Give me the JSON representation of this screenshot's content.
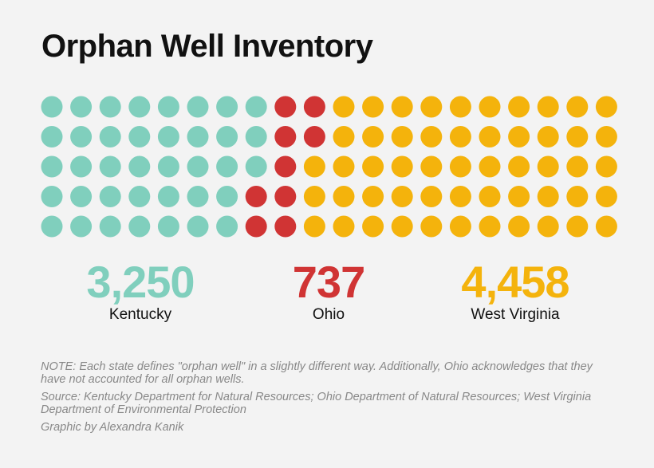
{
  "title": "Orphan Well Inventory",
  "colors": {
    "Kentucky": "#80cfbd",
    "Ohio": "#d03434",
    "West Virginia": "#f4b30c",
    "background": "#f3f3f3"
  },
  "chart_data": {
    "type": "waffle",
    "grid": {
      "rows": 5,
      "cols": 20
    },
    "series": [
      {
        "name": "Kentucky",
        "value": 3250,
        "display": "3,250"
      },
      {
        "name": "Ohio",
        "value": 737,
        "display": "737"
      },
      {
        "name": "West Virginia",
        "value": 4458,
        "display": "4,458"
      }
    ],
    "row_fill": [
      {
        "Kentucky": 8,
        "Ohio": 2,
        "West Virginia": 10
      },
      {
        "Kentucky": 8,
        "Ohio": 2,
        "West Virginia": 10
      },
      {
        "Kentucky": 8,
        "Ohio": 1,
        "West Virginia": 11
      },
      {
        "Kentucky": 7,
        "Ohio": 2,
        "West Virginia": 11
      },
      {
        "Kentucky": 7,
        "Ohio": 2,
        "West Virginia": 11
      }
    ]
  },
  "notes": {
    "note": "NOTE: Each state defines \"orphan well\" in a slightly different way. Additionally, Ohio acknowledges that they have not accounted for all orphan wells.",
    "source": "Source: Kentucky Department for Natural Resources; Ohio Department of Natural Resources; West Virginia Department of Environmental Protection",
    "credit": "Graphic by Alexandra Kanik"
  }
}
